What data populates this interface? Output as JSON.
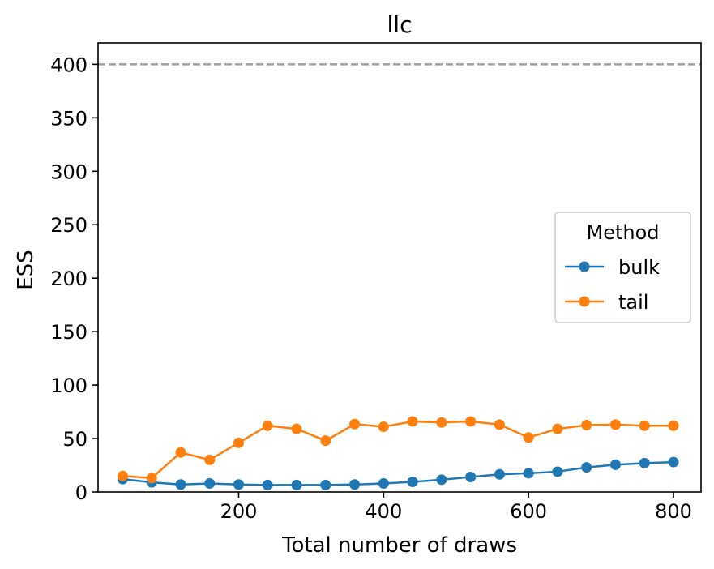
{
  "chart_data": {
    "type": "line",
    "title": "llc",
    "xlabel": "Total number of draws",
    "ylabel": "ESS",
    "xlim": [
      6,
      838
    ],
    "ylim": [
      0,
      420
    ],
    "xticks": [
      200,
      400,
      600,
      800
    ],
    "yticks": [
      0,
      50,
      100,
      150,
      200,
      250,
      300,
      350,
      400
    ],
    "grid": false,
    "reference_line": {
      "y": 400,
      "color": "#a0a0a0",
      "style": "dashed"
    },
    "legend": {
      "title": "Method",
      "placement": "center-right"
    },
    "x": [
      40,
      80,
      120,
      160,
      200,
      240,
      280,
      320,
      360,
      400,
      440,
      480,
      520,
      560,
      600,
      640,
      680,
      720,
      760,
      800
    ],
    "series": [
      {
        "name": "bulk",
        "color": "#1f77b4",
        "values": [
          12,
          9,
          7,
          8,
          7,
          6.5,
          6.5,
          6.5,
          7,
          8,
          9.5,
          11.5,
          14,
          16.5,
          17.5,
          19,
          23,
          25.5,
          27,
          28
        ]
      },
      {
        "name": "tail",
        "color": "#ff7f0e",
        "values": [
          15,
          13,
          37,
          30,
          46,
          62,
          59,
          48,
          63.5,
          61,
          66,
          65,
          66,
          63,
          51,
          59,
          62.5,
          63,
          62,
          62
        ]
      }
    ]
  }
}
